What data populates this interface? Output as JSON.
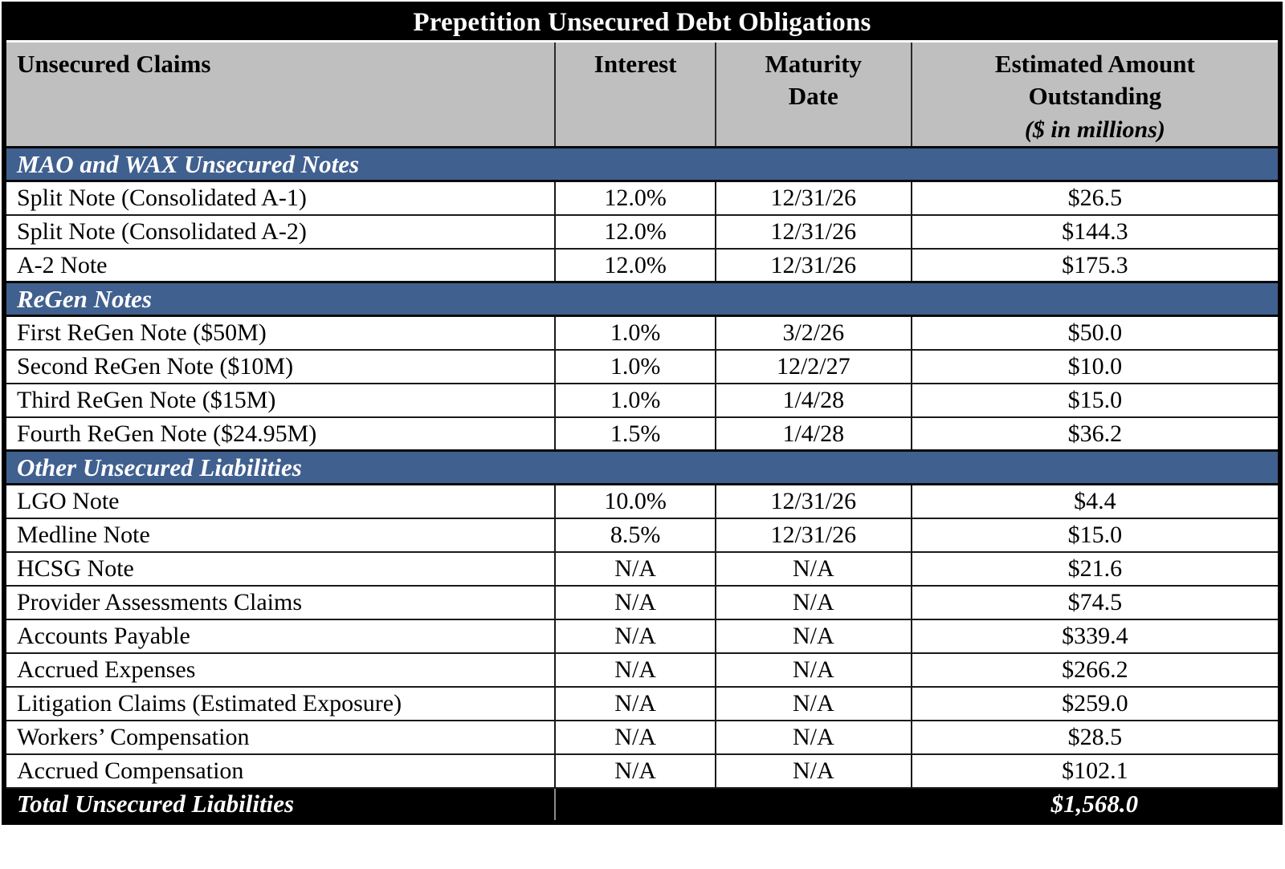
{
  "title": "Prepetition Unsecured Debt Obligations",
  "columns": [
    "Unsecured Claims",
    "Interest",
    "Maturity\nDate",
    "Estimated Amount\nOutstanding"
  ],
  "amount_note": "($ in millions)",
  "sections": [
    {
      "label": "MAO and WAX Unsecured Notes",
      "rows": [
        {
          "claim": "Split Note (Consolidated A-1)",
          "interest": "12.0%",
          "maturity": "12/31/26",
          "amount": "$26.5"
        },
        {
          "claim": "Split Note (Consolidated A-2)",
          "interest": "12.0%",
          "maturity": "12/31/26",
          "amount": "$144.3"
        },
        {
          "claim": "A-2 Note",
          "interest": "12.0%",
          "maturity": "12/31/26",
          "amount": "$175.3"
        }
      ]
    },
    {
      "label": "ReGen Notes",
      "rows": [
        {
          "claim": "First ReGen Note ($50M)",
          "interest": "1.0%",
          "maturity": "3/2/26",
          "amount": "$50.0"
        },
        {
          "claim": "Second ReGen Note ($10M)",
          "interest": "1.0%",
          "maturity": "12/2/27",
          "amount": "$10.0"
        },
        {
          "claim": "Third ReGen Note ($15M)",
          "interest": "1.0%",
          "maturity": "1/4/28",
          "amount": "$15.0"
        },
        {
          "claim": "Fourth ReGen Note ($24.95M)",
          "interest": "1.5%",
          "maturity": "1/4/28",
          "amount": "$36.2"
        }
      ]
    },
    {
      "label": "Other Unsecured Liabilities",
      "rows": [
        {
          "claim": "LGO Note",
          "interest": "10.0%",
          "maturity": "12/31/26",
          "amount": "$4.4"
        },
        {
          "claim": "Medline Note",
          "interest": "8.5%",
          "maturity": "12/31/26",
          "amount": "$15.0"
        },
        {
          "claim": "HCSG Note",
          "interest": "N/A",
          "maturity": "N/A",
          "amount": "$21.6"
        },
        {
          "claim": "Provider Assessments Claims",
          "interest": "N/A",
          "maturity": "N/A",
          "amount": "$74.5"
        },
        {
          "claim": "Accounts Payable",
          "interest": "N/A",
          "maturity": "N/A",
          "amount": "$339.4"
        },
        {
          "claim": "Accrued Expenses",
          "interest": "N/A",
          "maturity": "N/A",
          "amount": "$266.2"
        },
        {
          "claim": "Litigation Claims (Estimated Exposure)",
          "interest": "N/A",
          "maturity": "N/A",
          "amount": "$259.0"
        },
        {
          "claim": "Workers’ Compensation",
          "interest": "N/A",
          "maturity": "N/A",
          "amount": "$28.5"
        },
        {
          "claim": "Accrued Compensation",
          "interest": "N/A",
          "maturity": "N/A",
          "amount": "$102.1"
        }
      ]
    }
  ],
  "total": {
    "label": "Total Unsecured Liabilities",
    "amount": "$1,568.0"
  },
  "colors": {
    "title_bg": "#000000",
    "header_bg": "#BFBFBF",
    "section_bg": "#40608F",
    "total_bg": "#000000",
    "row_bg": "#FFFFFF",
    "border": "#000000"
  }
}
